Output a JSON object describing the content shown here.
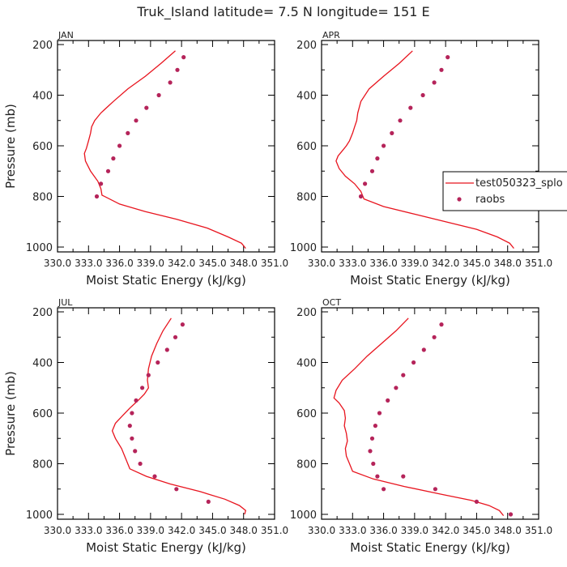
{
  "title": "Truk_Island  latitude= 7.5 N longitude= 151 E",
  "colors": {
    "model": "#e8141e",
    "obs": "#b5245a",
    "frame": "#000000"
  },
  "legend": {
    "model_label": "test050323_splo",
    "obs_label": "raobs",
    "placement": "right of APR panel"
  },
  "y_axis": {
    "label": "Pressure (mb)",
    "ticks": [
      200,
      400,
      600,
      800,
      1000
    ],
    "range": [
      200,
      1000
    ],
    "inverted": true
  },
  "x_axis": {
    "label": "Moist Static Energy (kJ/kg)",
    "range": [
      330.0,
      351.0
    ],
    "ticks": [
      330.0,
      333.0,
      336.0,
      339.0,
      342.0,
      345.0,
      348.0,
      351.0
    ],
    "tick_labels": [
      "330.0",
      "333.0",
      "336.0",
      "339.0",
      "342.0",
      "345.0",
      "348.0",
      "351.0"
    ]
  },
  "chart_data": [
    {
      "type": "line",
      "panel": "JAN",
      "series": [
        {
          "name": "test050323_splo",
          "kind": "line",
          "x": [
            341.4,
            340.0,
            338.5,
            336.8,
            335.4,
            334.2,
            333.6,
            333.3,
            333.2,
            333.0,
            332.8,
            332.6,
            332.7,
            333.2,
            333.9,
            334.2,
            334.3,
            336.0,
            338.5,
            341.5,
            344.5,
            346.5,
            347.8,
            348.2
          ],
          "y": [
            225,
            275,
            325,
            375,
            425,
            470,
            500,
            525,
            550,
            580,
            610,
            630,
            660,
            700,
            740,
            770,
            795,
            830,
            860,
            890,
            925,
            960,
            985,
            1005
          ]
        },
        {
          "name": "raobs",
          "kind": "scatter",
          "x": [
            342.2,
            341.6,
            340.9,
            339.8,
            338.6,
            337.6,
            336.8,
            336.0,
            335.4,
            334.9,
            334.2,
            333.8
          ],
          "y": [
            250,
            300,
            350,
            400,
            450,
            500,
            550,
            600,
            650,
            700,
            750,
            800
          ]
        }
      ]
    },
    {
      "type": "line",
      "panel": "APR",
      "series": [
        {
          "name": "test050323_splo",
          "kind": "line",
          "x": [
            338.8,
            337.5,
            336.0,
            334.6,
            333.8,
            333.5,
            333.4,
            333.2,
            333.0,
            332.7,
            332.4,
            332.0,
            331.6,
            331.4,
            331.7,
            332.3,
            333.2,
            333.8,
            334.1,
            336.0,
            339.0,
            342.0,
            345.0,
            347.0,
            348.2,
            348.6
          ],
          "y": [
            225,
            275,
            325,
            375,
            425,
            470,
            500,
            525,
            550,
            580,
            600,
            620,
            640,
            660,
            690,
            720,
            750,
            780,
            810,
            840,
            870,
            900,
            930,
            960,
            985,
            1005
          ]
        },
        {
          "name": "raobs",
          "kind": "scatter",
          "x": [
            342.2,
            341.6,
            340.9,
            339.8,
            338.6,
            337.6,
            336.8,
            336.0,
            335.4,
            334.9,
            334.2,
            333.8
          ],
          "y": [
            250,
            300,
            350,
            400,
            450,
            500,
            550,
            600,
            650,
            700,
            750,
            800
          ]
        }
      ]
    },
    {
      "type": "line",
      "panel": "JUL",
      "series": [
        {
          "name": "test050323_splo",
          "kind": "line",
          "x": [
            341.0,
            340.2,
            339.6,
            339.1,
            338.8,
            338.7,
            338.8,
            338.4,
            337.8,
            337.0,
            336.3,
            335.6,
            335.3,
            335.6,
            336.2,
            336.6,
            337.0,
            338.6,
            340.9,
            343.8,
            346.2,
            347.6,
            348.2,
            348.1
          ],
          "y": [
            225,
            275,
            325,
            375,
            425,
            470,
            500,
            525,
            550,
            580,
            610,
            640,
            670,
            700,
            740,
            780,
            820,
            850,
            880,
            910,
            940,
            965,
            985,
            1000
          ]
        },
        {
          "name": "raobs",
          "kind": "scatter",
          "x": [
            342.1,
            341.4,
            340.6,
            339.7,
            338.8,
            338.2,
            337.6,
            337.2,
            337.0,
            337.2,
            337.5,
            338.0,
            339.4,
            341.5,
            344.6
          ],
          "y": [
            250,
            300,
            350,
            400,
            450,
            500,
            550,
            600,
            650,
            700,
            750,
            800,
            850,
            900,
            950
          ]
        }
      ]
    },
    {
      "type": "line",
      "panel": "OCT",
      "series": [
        {
          "name": "test050323_splo",
          "kind": "line",
          "x": [
            338.4,
            337.2,
            335.8,
            334.4,
            333.2,
            332.0,
            331.4,
            331.2,
            331.7,
            332.2,
            332.3,
            332.2,
            332.4,
            332.5,
            332.3,
            332.4,
            332.7,
            333.0,
            335.0,
            338.0,
            341.5,
            344.5,
            346.2,
            347.2,
            347.6
          ],
          "y": [
            225,
            275,
            325,
            375,
            425,
            470,
            510,
            540,
            560,
            590,
            620,
            650,
            680,
            710,
            740,
            770,
            800,
            830,
            860,
            890,
            920,
            945,
            965,
            985,
            1005
          ]
        },
        {
          "name": "raobs",
          "kind": "scatter",
          "x": [
            341.6,
            340.9,
            339.9,
            338.9,
            337.9,
            337.2,
            336.4,
            335.6,
            335.2,
            334.9,
            334.7,
            335.0,
            335.4,
            336.0,
            337.9,
            341.0,
            345.0,
            348.3
          ],
          "y": [
            250,
            300,
            350,
            400,
            450,
            500,
            550,
            600,
            650,
            700,
            750,
            800,
            850,
            900,
            850,
            900,
            950,
            1000
          ]
        }
      ]
    }
  ]
}
